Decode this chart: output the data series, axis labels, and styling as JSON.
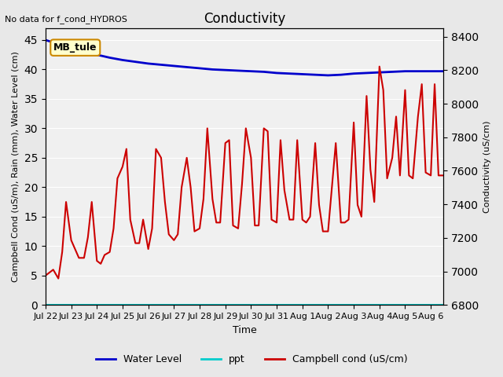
{
  "title": "Conductivity",
  "top_left_text": "No data for f_cond_HYDROS",
  "xlabel": "Time",
  "ylabel_left": "Campbell Cond (uS/m), Rain (mm), Water Level (cm)",
  "ylabel_right": "Conductivity (uS/cm)",
  "annotation_box": "MB_tule",
  "xlim_num": [
    0,
    15.5
  ],
  "ylim_left": [
    0,
    47
  ],
  "ylim_right": [
    6800,
    8450
  ],
  "xtick_labels": [
    "Jul 22",
    "Jul 23",
    "Jul 24",
    "Jul 25",
    "Jul 26",
    "Jul 27",
    "Jul 28",
    "Jul 29",
    "Jul 30",
    "Jul 31",
    "Aug 1",
    "Aug 2",
    "Aug 3",
    "Aug 4",
    "Aug 5",
    "Aug 6"
  ],
  "ytick_left": [
    0,
    5,
    10,
    15,
    20,
    25,
    30,
    35,
    40,
    45
  ],
  "ytick_right": [
    6800,
    7000,
    7200,
    7400,
    7600,
    7800,
    8000,
    8200,
    8400
  ],
  "bg_color": "#e8e8e8",
  "plot_bg_color": "#f0f0f0",
  "water_level_color": "#0000cc",
  "ppt_color": "#00cccc",
  "campbell_color": "#cc0000",
  "legend_entries": [
    "Water Level",
    "ppt",
    "Campbell cond (uS/cm)"
  ],
  "water_level_x": [
    0,
    0.5,
    1.0,
    1.5,
    2.0,
    2.5,
    3.0,
    3.5,
    4.0,
    4.5,
    5.0,
    5.5,
    6.0,
    6.5,
    7.0,
    7.5,
    8.0,
    8.5,
    9.0,
    9.5,
    10.0,
    10.5,
    11.0,
    11.5,
    12.0,
    12.5,
    13.0,
    13.5,
    14.0,
    14.5,
    15.0,
    15.5
  ],
  "water_level_y": [
    45.0,
    44.3,
    43.5,
    43.0,
    42.5,
    42.0,
    41.6,
    41.3,
    41.0,
    40.8,
    40.6,
    40.4,
    40.2,
    40.0,
    39.9,
    39.8,
    39.7,
    39.6,
    39.4,
    39.3,
    39.2,
    39.1,
    39.0,
    39.1,
    39.3,
    39.4,
    39.5,
    39.6,
    39.7,
    39.7,
    39.7,
    39.7
  ],
  "campbell_x": [
    0.0,
    0.15,
    0.3,
    0.5,
    0.65,
    0.8,
    1.0,
    1.15,
    1.3,
    1.5,
    1.65,
    1.8,
    2.0,
    2.15,
    2.3,
    2.5,
    2.65,
    2.8,
    3.0,
    3.15,
    3.3,
    3.5,
    3.65,
    3.8,
    4.0,
    4.15,
    4.3,
    4.5,
    4.65,
    4.8,
    5.0,
    5.15,
    5.3,
    5.5,
    5.65,
    5.8,
    6.0,
    6.15,
    6.3,
    6.5,
    6.65,
    6.8,
    7.0,
    7.15,
    7.3,
    7.5,
    7.65,
    7.8,
    8.0,
    8.15,
    8.3,
    8.5,
    8.65,
    8.8,
    9.0,
    9.15,
    9.3,
    9.5,
    9.65,
    9.8,
    10.0,
    10.15,
    10.3,
    10.5,
    10.65,
    10.8,
    11.0,
    11.15,
    11.3,
    11.5,
    11.65,
    11.8,
    12.0,
    12.15,
    12.3,
    12.5,
    12.65,
    12.8,
    13.0,
    13.15,
    13.3,
    13.5,
    13.65,
    13.8,
    14.0,
    14.15,
    14.3,
    14.5,
    14.65,
    14.8,
    15.0,
    15.15,
    15.3,
    15.5
  ],
  "campbell_y": [
    5.0,
    5.5,
    6.0,
    4.5,
    9.0,
    17.5,
    11.0,
    9.5,
    8.0,
    8.0,
    11.5,
    17.5,
    7.5,
    7.0,
    8.5,
    9.0,
    13.0,
    21.5,
    23.5,
    26.5,
    14.5,
    10.5,
    10.5,
    14.5,
    9.5,
    13.0,
    26.5,
    25.0,
    17.5,
    12.0,
    11.0,
    12.0,
    20.0,
    25.0,
    20.0,
    12.5,
    13.0,
    18.0,
    30.0,
    18.0,
    14.0,
    14.0,
    27.5,
    28.0,
    13.5,
    13.0,
    20.5,
    30.0,
    25.0,
    13.5,
    13.5,
    30.0,
    29.5,
    14.5,
    14.0,
    28.0,
    19.5,
    14.5,
    14.5,
    28.0,
    14.5,
    14.0,
    15.0,
    27.5,
    17.0,
    12.5,
    12.5,
    20.0,
    27.5,
    14.0,
    14.0,
    14.5,
    31.0,
    17.0,
    15.0,
    35.5,
    23.0,
    17.5,
    40.5,
    36.5,
    21.5,
    25.0,
    32.0,
    22.0,
    36.5,
    22.0,
    21.5,
    32.0,
    37.5,
    22.5,
    22.0,
    37.5,
    22.0,
    22.0
  ]
}
